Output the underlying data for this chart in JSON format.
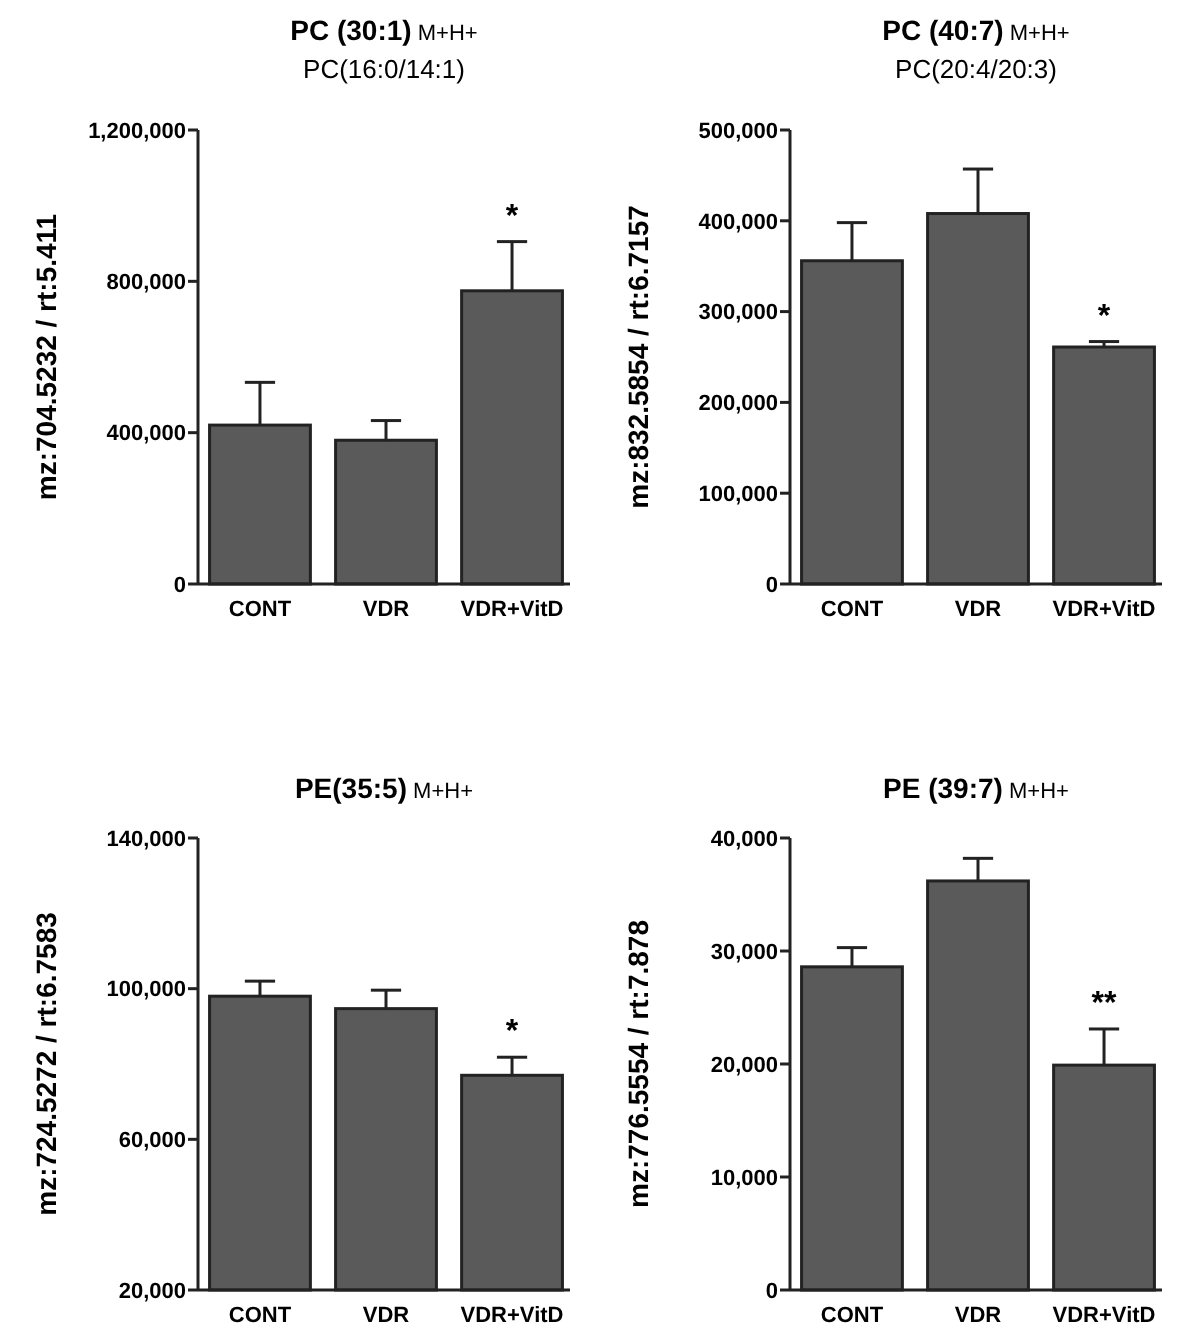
{
  "chart_data": [
    {
      "type": "bar",
      "title": "PC (30:1) M+H+",
      "subtitle": "PC(16:0/14:1)",
      "ylabel": "mz:704.5232 / rt:5.411",
      "categories": [
        "CONT",
        "VDR",
        "VDR+VitD"
      ],
      "values": [
        420000,
        380000,
        775000
      ],
      "errors": [
        [
          420000,
          533000
        ],
        [
          380000,
          432000
        ],
        [
          775000,
          905000
        ]
      ],
      "color": "#5a5a5a",
      "ylim": [
        0,
        1200000
      ],
      "yticks": [
        {
          "value": 0,
          "label": "0"
        },
        {
          "value": 400000,
          "label": "400,000"
        },
        {
          "value": 800000,
          "label": "800,000"
        },
        {
          "value": 1200000,
          "label": "1,200,000"
        }
      ],
      "annotations": [
        {
          "text": "*",
          "x": "VDR+VitD",
          "y": 905000
        }
      ]
    },
    {
      "type": "bar",
      "title": "PC (40:7) M+H+",
      "subtitle": "PC(20:4/20:3)",
      "ylabel": "mz:832.5854  / rt:6.7157",
      "categories": [
        "CONT",
        "VDR",
        "VDR+VitD"
      ],
      "values": [
        356000,
        408000,
        261000
      ],
      "errors": [
        [
          356000,
          398000
        ],
        [
          408000,
          457000
        ],
        [
          261000,
          267000
        ]
      ],
      "color": "#5a5a5a",
      "ylim": [
        0,
        500000
      ],
      "yticks": [
        {
          "value": 0,
          "label": "0"
        },
        {
          "value": 100000,
          "label": "100,000"
        },
        {
          "value": 200000,
          "label": "200,000"
        },
        {
          "value": 300000,
          "label": "300,000"
        },
        {
          "value": 400000,
          "label": "400,000"
        },
        {
          "value": 500000,
          "label": "500,000"
        }
      ],
      "annotations": [
        {
          "text": "*",
          "x": "VDR+VitD",
          "y": 267000
        }
      ]
    },
    {
      "type": "bar",
      "title": "PE(35:5) M+H+",
      "ylabel": "mz:724.5272 / rt:6.7583",
      "categories": [
        "CONT",
        "VDR",
        "VDR+VitD"
      ],
      "values": [
        98000,
        94700,
        77000
      ],
      "errors": [
        [
          98000,
          102000
        ],
        [
          94700,
          99600
        ],
        [
          77000,
          81800
        ]
      ],
      "color": "#5a5a5a",
      "ylim": [
        20000,
        140000
      ],
      "yticks": [
        {
          "value": 20000,
          "label": "20,000"
        },
        {
          "value": 60000,
          "label": "60,000"
        },
        {
          "value": 100000,
          "label": "100,000"
        },
        {
          "value": 140000,
          "label": "140,000"
        }
      ],
      "annotations": [
        {
          "text": "*",
          "x": "VDR+VitD",
          "y": 81800
        }
      ]
    },
    {
      "type": "bar",
      "title": "PE (39:7) M+H+",
      "ylabel": "mz:776.5554 / rt:7.878",
      "categories": [
        "CONT",
        "VDR",
        "VDR+VitD"
      ],
      "values": [
        28600,
        36200,
        19900
      ],
      "errors": [
        [
          28600,
          30300
        ],
        [
          36200,
          38200
        ],
        [
          19900,
          23100
        ]
      ],
      "color": "#5a5a5a",
      "ylim": [
        0,
        40000
      ],
      "yticks": [
        {
          "value": 0,
          "label": "0"
        },
        {
          "value": 10000,
          "label": "10,000"
        },
        {
          "value": 20000,
          "label": "20,000"
        },
        {
          "value": 30000,
          "label": "30,000"
        },
        {
          "value": 40000,
          "label": "40,000"
        }
      ],
      "annotations": [
        {
          "text": "**",
          "x": "VDR+VitD",
          "y": 23100
        }
      ]
    }
  ]
}
